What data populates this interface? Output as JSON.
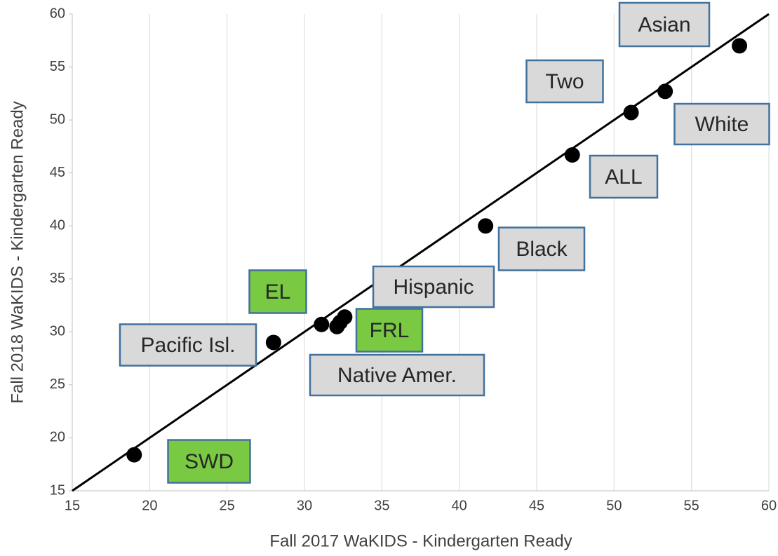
{
  "chart_data": {
    "type": "scatter",
    "x_label": "Fall 2017 WaKIDS - Kindergarten Ready",
    "y_label": "Fall 2018 WaKIDS - Kindergarten Ready",
    "x": [
      19.0,
      28.0,
      31.1,
      32.1,
      32.3,
      32.6,
      41.7,
      47.3,
      51.1,
      53.3,
      58.1
    ],
    "y": [
      18.4,
      29.0,
      30.7,
      30.5,
      30.9,
      31.4,
      40.0,
      46.7,
      50.7,
      52.7,
      57.0
    ],
    "color": "#000000",
    "xlim": [
      15,
      60
    ],
    "ylim": [
      15,
      60
    ],
    "xticks": [
      15,
      20,
      25,
      30,
      35,
      40,
      45,
      50,
      55,
      60
    ],
    "yticks": [
      15,
      20,
      25,
      30,
      35,
      40,
      45,
      50,
      55,
      60
    ],
    "xgrid": true,
    "diagonal": true,
    "annotations": [
      {
        "text": "Asian",
        "fill": "#d9d9d9"
      },
      {
        "text": "Two",
        "fill": "#d9d9d9"
      },
      {
        "text": "White",
        "fill": "#d9d9d9"
      },
      {
        "text": "ALL",
        "fill": "#d9d9d9"
      },
      {
        "text": "Black",
        "fill": "#d9d9d9"
      },
      {
        "text": "Hispanic",
        "fill": "#d9d9d9"
      },
      {
        "text": "EL",
        "fill": "#7ac943"
      },
      {
        "text": "FRL",
        "fill": "#7ac943"
      },
      {
        "text": "Pacific Isl.",
        "fill": "#d9d9d9"
      },
      {
        "text": "Native Amer.",
        "fill": "#d9d9d9"
      },
      {
        "text": "SWD",
        "fill": "#7ac943"
      }
    ]
  }
}
